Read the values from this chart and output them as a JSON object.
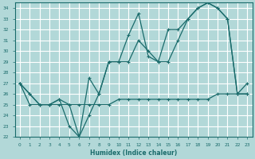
{
  "xlabel": "Humidex (Indice chaleur)",
  "bg_color": "#b2d8d8",
  "grid_color": "#ffffff",
  "line_color": "#1a6b6b",
  "x": [
    0,
    1,
    2,
    3,
    4,
    5,
    6,
    7,
    8,
    9,
    10,
    11,
    12,
    13,
    14,
    15,
    16,
    17,
    18,
    19,
    20,
    21,
    22,
    23
  ],
  "line1": [
    27,
    26,
    25,
    25,
    25.5,
    25,
    22,
    27.5,
    26,
    29,
    29,
    31.5,
    33.5,
    29.5,
    29,
    32,
    32,
    33,
    34,
    34.5,
    34,
    33,
    26,
    27
  ],
  "line2": [
    27,
    26,
    25,
    25,
    25.5,
    23,
    22,
    24,
    26,
    29,
    29,
    29,
    31,
    30,
    29,
    29,
    31,
    33,
    34,
    34.5,
    34,
    33,
    26,
    26
  ],
  "line3": [
    27,
    25,
    25,
    25,
    25,
    25,
    25,
    25,
    25,
    25,
    25.5,
    25.5,
    25.5,
    25.5,
    25.5,
    25.5,
    25.5,
    25.5,
    25.5,
    25.5,
    26,
    26,
    26,
    26
  ],
  "ylim": [
    22,
    34.5
  ],
  "xlim": [
    -0.5,
    23.5
  ],
  "yticks": [
    22,
    23,
    24,
    25,
    26,
    27,
    28,
    29,
    30,
    31,
    32,
    33,
    34
  ],
  "xticks": [
    0,
    1,
    2,
    3,
    4,
    5,
    6,
    7,
    8,
    9,
    10,
    11,
    12,
    13,
    14,
    15,
    16,
    17,
    18,
    19,
    20,
    21,
    22,
    23
  ]
}
